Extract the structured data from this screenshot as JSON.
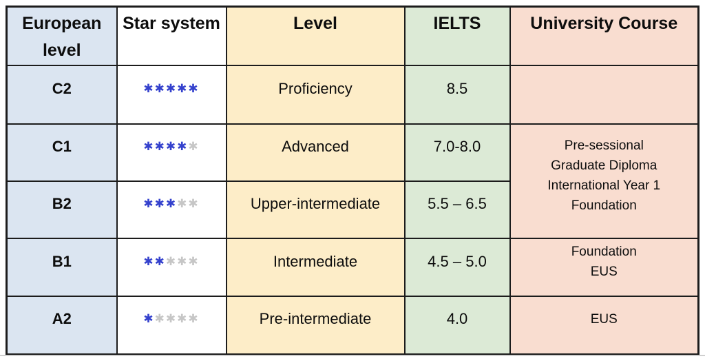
{
  "star_icon": "✱",
  "colors": {
    "col_european": "#dbe5f1",
    "col_star": "#ffffff",
    "col_level": "#fdedc8",
    "col_ielts": "#dcead6",
    "col_course": "#f9ddd0",
    "star_filled": "#3441cd",
    "star_empty": "#c6c6c6",
    "border": "#1c1c1c"
  },
  "header": {
    "european_level": "European level",
    "star_system": "Star system",
    "level": "Level",
    "ielts": "IELTS",
    "university_course": "University Course"
  },
  "rows": [
    {
      "european_level": "C2",
      "stars": {
        "filled": 5,
        "total": 5
      },
      "level": "Proficiency",
      "ielts": "8.5",
      "course_lines": []
    },
    {
      "european_level": "C1",
      "stars": {
        "filled": 4,
        "total": 5
      },
      "level": "Advanced",
      "ielts": "7.0-8.0",
      "course_lines": [
        "Pre-sessional",
        "Graduate Diploma",
        "International Year 1",
        "Foundation"
      ],
      "course_rowspan": 2
    },
    {
      "european_level": "B2",
      "stars": {
        "filled": 3,
        "total": 5
      },
      "level": "Upper-intermediate",
      "ielts": "5.5 – 6.5",
      "course_merged_above": true
    },
    {
      "european_level": "B1",
      "stars": {
        "filled": 2,
        "total": 5
      },
      "level": "Intermediate",
      "ielts": "4.5 – 5.0",
      "course_lines": [
        "Foundation",
        "EUS"
      ]
    },
    {
      "european_level": "A2",
      "stars": {
        "filled": 1,
        "total": 5
      },
      "level": "Pre-intermediate",
      "ielts": "4.0",
      "course_lines": [
        "EUS"
      ]
    }
  ]
}
